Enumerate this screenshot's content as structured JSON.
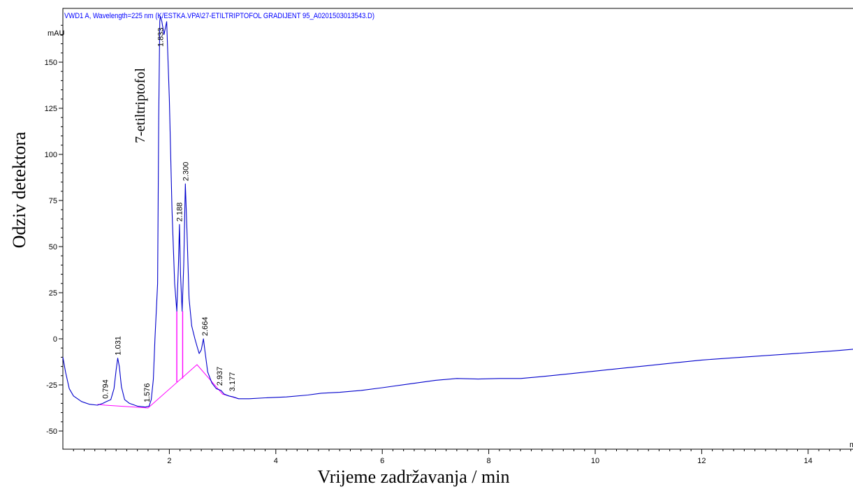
{
  "chart_data": {
    "type": "line",
    "title": "VWD1 A, Wavelength=225 nm (K/ESTKA.VPA\\27-ETILTRIPTOFOL GRADIJENT 95_A0201503013543.D)",
    "y_unit": "mAU",
    "xlabel": "Vrijeme zadržavanja / min",
    "ylabel": "Odziv detektora",
    "x_unit_partial": "m",
    "xlim": [
      0,
      14.9
    ],
    "ylim": [
      -52,
      175
    ],
    "x_ticks": [
      2,
      4,
      6,
      8,
      10,
      12,
      14
    ],
    "x_tick_labels": [
      "2",
      "4",
      "6",
      "8",
      "10",
      "12",
      "14"
    ],
    "y_ticks": [
      -50,
      -25,
      0,
      25,
      50,
      75,
      100,
      125,
      150
    ],
    "y_tick_labels": [
      "-50",
      "-25",
      "0",
      "25",
      "50",
      "75",
      "100",
      "125",
      "150"
    ],
    "annotation": "7-etiltriptofol",
    "colors": {
      "trace": "#0000cc",
      "baseline": "#ff00ff",
      "axis": "#000000",
      "header": "#0000ff"
    },
    "series": [
      {
        "values": [
          [
            0.0,
            -10
          ],
          [
            0.05,
            -18
          ],
          [
            0.12,
            -27
          ],
          [
            0.2,
            -31
          ],
          [
            0.35,
            -34
          ],
          [
            0.5,
            -35.5
          ],
          [
            0.65,
            -36
          ],
          [
            0.75,
            -35
          ],
          [
            0.82,
            -34
          ],
          [
            0.9,
            -33
          ],
          [
            0.96,
            -27
          ],
          [
            1.0,
            -17
          ],
          [
            1.03,
            -10.5
          ],
          [
            1.06,
            -15
          ],
          [
            1.1,
            -26
          ],
          [
            1.16,
            -33
          ],
          [
            1.25,
            -35
          ],
          [
            1.4,
            -36.5
          ],
          [
            1.55,
            -37
          ],
          [
            1.62,
            -36.5
          ],
          [
            1.66,
            -33
          ],
          [
            1.7,
            -22
          ],
          [
            1.73,
            0
          ],
          [
            1.76,
            18
          ],
          [
            1.78,
            30
          ],
          [
            1.8,
            120
          ],
          [
            1.82,
            172
          ],
          [
            1.83,
            175
          ],
          [
            1.86,
            172
          ],
          [
            1.9,
            165
          ],
          [
            1.95,
            172
          ],
          [
            2.0,
            130
          ],
          [
            2.05,
            70
          ],
          [
            2.1,
            30
          ],
          [
            2.14,
            15
          ],
          [
            2.17,
            40
          ],
          [
            2.19,
            62
          ],
          [
            2.21,
            35
          ],
          [
            2.24,
            15
          ],
          [
            2.27,
            40
          ],
          [
            2.3,
            84
          ],
          [
            2.33,
            60
          ],
          [
            2.37,
            22
          ],
          [
            2.42,
            7
          ],
          [
            2.48,
            0
          ],
          [
            2.52,
            -4
          ],
          [
            2.56,
            -8
          ],
          [
            2.6,
            -6
          ],
          [
            2.64,
            0
          ],
          [
            2.67,
            -7
          ],
          [
            2.72,
            -18
          ],
          [
            2.8,
            -24
          ],
          [
            2.88,
            -27
          ],
          [
            2.97,
            -28
          ],
          [
            3.03,
            -30
          ],
          [
            3.12,
            -31
          ],
          [
            3.2,
            -31.5
          ],
          [
            3.3,
            -32.5
          ],
          [
            3.5,
            -32.5
          ],
          [
            3.8,
            -32
          ],
          [
            4.2,
            -31.5
          ],
          [
            4.6,
            -30.5
          ],
          [
            4.85,
            -29.5
          ],
          [
            5.2,
            -29
          ],
          [
            5.6,
            -28
          ],
          [
            6.0,
            -26.5
          ],
          [
            6.5,
            -24.5
          ],
          [
            7.0,
            -22.5
          ],
          [
            7.4,
            -21.5
          ],
          [
            7.8,
            -21.8
          ],
          [
            8.2,
            -21.5
          ],
          [
            8.6,
            -21.5
          ],
          [
            9.0,
            -20.5
          ],
          [
            9.5,
            -19
          ],
          [
            10.0,
            -17.5
          ],
          [
            10.5,
            -16
          ],
          [
            11.0,
            -14.5
          ],
          [
            11.5,
            -13
          ],
          [
            12.0,
            -11.5
          ],
          [
            12.5,
            -10.5
          ],
          [
            13.0,
            -9.5
          ],
          [
            13.5,
            -8.5
          ],
          [
            14.0,
            -7.5
          ],
          [
            14.5,
            -6.5
          ],
          [
            14.9,
            -5.5
          ]
        ]
      }
    ],
    "baseline": [
      [
        0.65,
        -35.5
      ],
      [
        0.794,
        -36
      ],
      [
        1.6,
        -37.5
      ],
      [
        2.52,
        -14
      ],
      [
        3.0,
        -30
      ],
      [
        3.3,
        -32.5
      ]
    ],
    "drop_lines": [
      {
        "x": 2.14,
        "y_bottom": -23.5,
        "y_top": 15
      },
      {
        "x": 2.25,
        "y_bottom": -21.5,
        "y_top": 15
      }
    ],
    "peaks": [
      {
        "label": "0.794",
        "x": 0.794,
        "y": -34
      },
      {
        "label": "1.031",
        "x": 1.031,
        "y": -10.5
      },
      {
        "label": "1.576",
        "x": 1.576,
        "y": -36
      },
      {
        "label": "1.833",
        "x": 1.833,
        "y": 168
      },
      {
        "label": "2.188",
        "x": 2.188,
        "y": 62
      },
      {
        "label": "2.300",
        "x": 2.3,
        "y": 84
      },
      {
        "label": "2.664",
        "x": 2.664,
        "y": 0
      },
      {
        "label": "2.937",
        "x": 2.937,
        "y": -27
      },
      {
        "label": "3.177",
        "x": 3.177,
        "y": -30
      }
    ]
  }
}
